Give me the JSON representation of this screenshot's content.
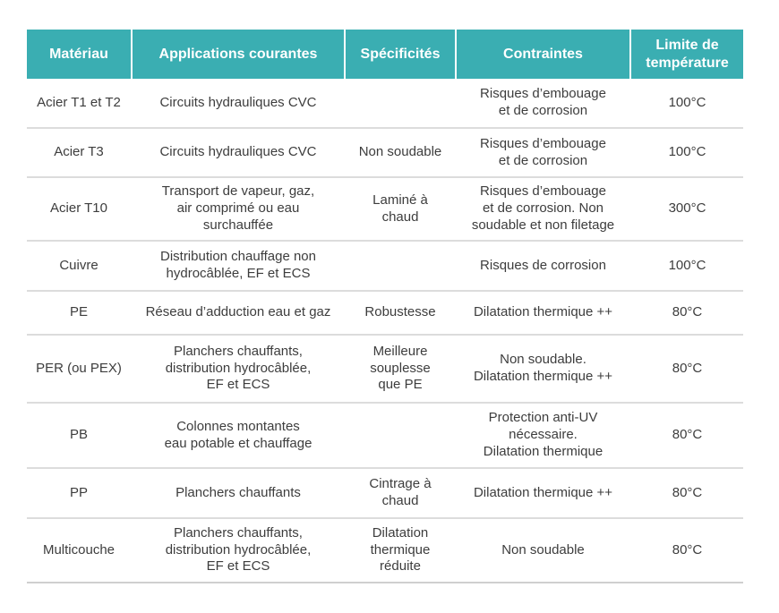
{
  "accent_color": "#3aaeb2",
  "table": {
    "header": [
      "Matériau",
      "Applications courantes",
      "Spécificités",
      "Contraintes",
      "Limite de\ntempérature"
    ],
    "rows": [
      {
        "materiau": "Acier T1 et T2",
        "applications": "Circuits hydrauliques CVC",
        "specificites": "",
        "contraintes": "Risques d’embouage\net de corrosion",
        "limite": "100°C"
      },
      {
        "materiau": "Acier T3",
        "applications": "Circuits hydrauliques CVC",
        "specificites": "Non soudable",
        "contraintes": "Risques d’embouage\net de corrosion",
        "limite": "100°C"
      },
      {
        "materiau": "Acier T10",
        "applications": "Transport de vapeur, gaz,\nair comprimé ou eau\nsurchauffée",
        "specificites": "Laminé à\nchaud",
        "contraintes": "Risques d’embouage\net de corrosion. Non\nsoudable et non filetage",
        "limite": "300°C"
      },
      {
        "materiau": "Cuivre",
        "applications": "Distribution chauffage non\nhydrocâblée, EF et ECS",
        "specificites": "",
        "contraintes": "Risques de corrosion",
        "limite": "100°C"
      },
      {
        "materiau": "PE",
        "applications": "Réseau d’adduction eau et gaz",
        "specificites": "Robustesse",
        "contraintes": "Dilatation thermique ++",
        "limite": "80°C"
      },
      {
        "materiau": "PER (ou PEX)",
        "applications": "Planchers chauffants,\ndistribution hydrocâblée,\nEF et ECS",
        "specificites": "Meilleure\nsouplesse\nque PE",
        "contraintes": "Non soudable.\nDilatation thermique ++",
        "limite": "80°C"
      },
      {
        "materiau": "PB",
        "applications": "Colonnes montantes\neau potable et chauffage",
        "specificites": "",
        "contraintes": "Protection anti-UV\nnécessaire.\nDilatation thermique",
        "limite": "80°C"
      },
      {
        "materiau": "PP",
        "applications": "Planchers chauffants",
        "specificites": "Cintrage à\nchaud",
        "contraintes": "Dilatation thermique ++",
        "limite": "80°C"
      },
      {
        "materiau": "Multicouche",
        "applications": "Planchers chauffants,\ndistribution hydrocâblée,\nEF et ECS",
        "specificites": "Dilatation\nthermique\nréduite",
        "contraintes": "Non soudable",
        "limite": "80°C"
      }
    ]
  }
}
